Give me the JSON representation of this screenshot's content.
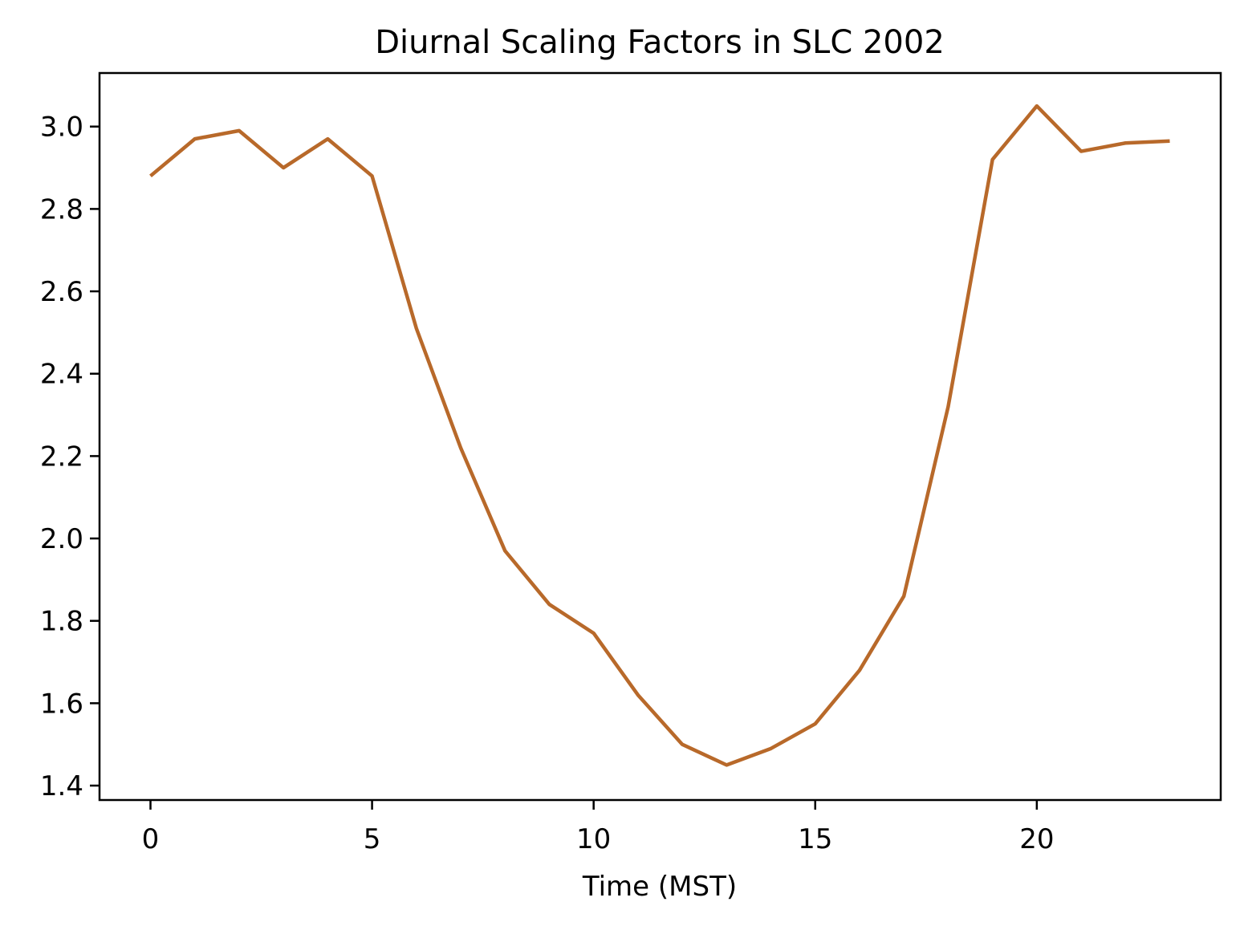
{
  "chart_data": {
    "type": "line",
    "title": "Diurnal Scaling Factors in SLC 2002",
    "xlabel": "Time (MST)",
    "ylabel": "",
    "xlim": [
      -1.15,
      24.15
    ],
    "ylim": [
      1.365,
      3.13
    ],
    "xticks": [
      0,
      5,
      10,
      15,
      20
    ],
    "xtick_labels": [
      "0",
      "5",
      "10",
      "15",
      "20"
    ],
    "yticks": [
      1.4,
      1.6,
      1.8,
      2.0,
      2.2,
      2.4,
      2.6,
      2.8,
      3.0
    ],
    "ytick_labels": [
      "1.4",
      "1.6",
      "1.8",
      "2.0",
      "2.2",
      "2.4",
      "2.6",
      "2.8",
      "3.0"
    ],
    "grid": false,
    "legend": "none",
    "x": [
      0,
      1,
      2,
      3,
      4,
      5,
      6,
      7,
      8,
      9,
      10,
      11,
      12,
      13,
      14,
      15,
      16,
      17,
      18,
      19,
      20,
      21,
      22,
      23
    ],
    "series": [
      {
        "color": "#b8692a",
        "values": [
          2.88,
          2.97,
          2.99,
          2.9,
          2.97,
          2.88,
          2.51,
          2.22,
          1.97,
          1.84,
          1.77,
          1.62,
          1.5,
          1.45,
          1.49,
          1.55,
          1.68,
          1.86,
          2.32,
          2.92,
          3.05,
          2.94,
          2.96,
          2.965
        ]
      }
    ]
  }
}
